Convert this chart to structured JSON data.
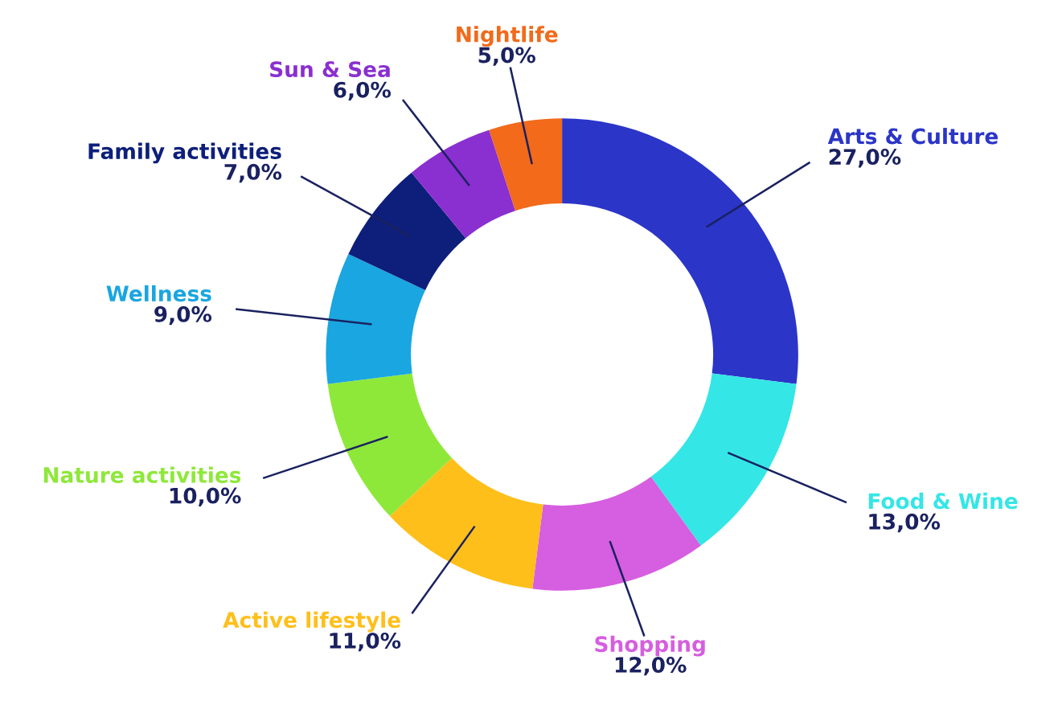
{
  "chart_data": {
    "type": "donut",
    "categories": [
      "Arts & Culture",
      "Food & Wine",
      "Shopping",
      "Active lifestyle",
      "Nature activities",
      "Wellness",
      "Family activities",
      "Sun & Sea",
      "Nightlife"
    ],
    "values": [
      27,
      13,
      12,
      11,
      10,
      9,
      7,
      6,
      5
    ],
    "value_labels": [
      "27,0%",
      "13,0%",
      "12,0%",
      "11,0%",
      "10,0%",
      "9,0%",
      "7,0%",
      "6,0%",
      "5,0%"
    ],
    "colors": [
      "#2b35c8",
      "#35e6e6",
      "#d65ee0",
      "#ffbf1a",
      "#8ee83a",
      "#1aa6e0",
      "#0d1f7a",
      "#8a2fd0",
      "#f26a1a"
    ],
    "legend": false
  }
}
